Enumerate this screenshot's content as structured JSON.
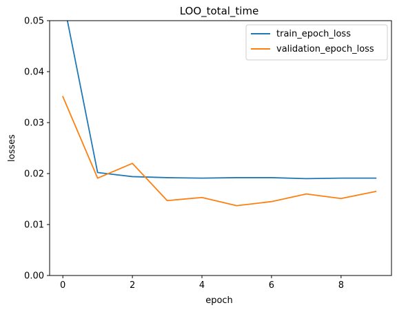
{
  "chart_data": {
    "type": "line",
    "title": "LOO_total_time",
    "xlabel": "epoch",
    "ylabel": "losses",
    "xlim": [
      -0.38,
      9.45
    ],
    "ylim": [
      0.0,
      0.05
    ],
    "xticks": [
      0,
      2,
      4,
      6,
      8
    ],
    "yticks": [
      0.0,
      0.01,
      0.02,
      0.03,
      0.04,
      0.05
    ],
    "xtick_labels": [
      "0",
      "2",
      "4",
      "6",
      "8"
    ],
    "ytick_labels": [
      "0.00",
      "0.01",
      "0.02",
      "0.03",
      "0.04",
      "0.05"
    ],
    "grid": false,
    "legend_position": "upper right",
    "x": [
      0,
      1,
      2,
      3,
      4,
      5,
      6,
      7,
      8,
      9
    ],
    "series": [
      {
        "name": "train_epoch_loss",
        "color": "#1f77b4",
        "values": [
          0.0545,
          0.0202,
          0.0194,
          0.0192,
          0.0191,
          0.0192,
          0.0192,
          0.019,
          0.0191,
          0.0191
        ],
        "clipped_above_ylim": true
      },
      {
        "name": "validation_epoch_loss",
        "color": "#ff7f0e",
        "values": [
          0.0351,
          0.0191,
          0.022,
          0.0147,
          0.0153,
          0.0137,
          0.0145,
          0.016,
          0.0151,
          0.0165
        ]
      }
    ]
  }
}
